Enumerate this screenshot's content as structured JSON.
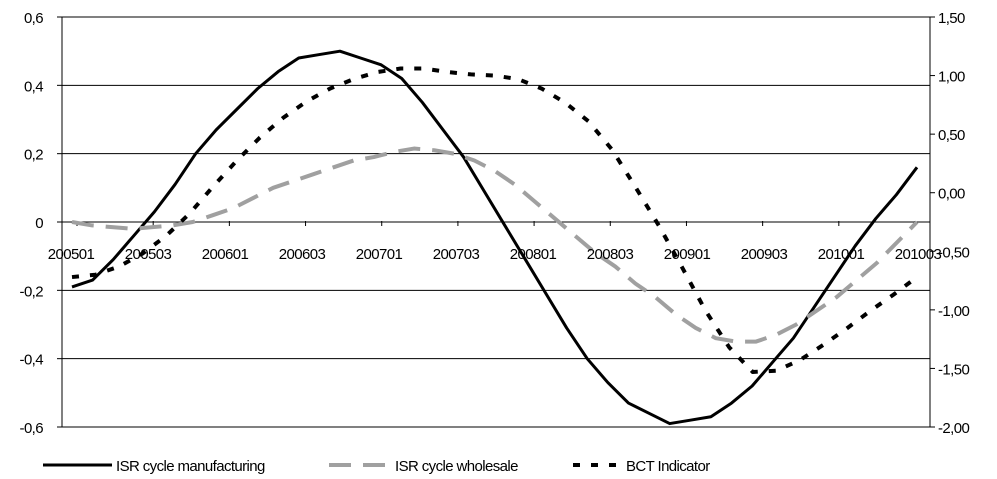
{
  "chart_data": {
    "type": "line",
    "title": "",
    "xlabel": "",
    "ylabel": "",
    "grid": true,
    "legend_position": "bottom",
    "x_tick_labels": [
      "200501",
      "200503",
      "200601",
      "200603",
      "200701",
      "200703",
      "200801",
      "200803",
      "200901",
      "200903",
      "201001",
      "201003"
    ],
    "y_left": {
      "ylim": [
        -0.6,
        0.6
      ],
      "tick_labels": [
        "0,6",
        "0,4",
        "0,2",
        "0",
        "-0,2",
        "-0,4",
        "-0,6"
      ],
      "tick_values": [
        0.6,
        0.4,
        0.2,
        0,
        -0.2,
        -0.4,
        -0.6
      ]
    },
    "y_right": {
      "ylim": [
        -2.0,
        1.5
      ],
      "tick_labels": [
        "1,50",
        "1,00",
        "0,50",
        "0,00",
        "-0,50",
        "-1,00",
        "-1,50",
        "-2,00"
      ],
      "tick_values": [
        1.5,
        1.0,
        0.5,
        0.0,
        -0.5,
        -1.0,
        -1.5,
        -2.0
      ]
    },
    "series": [
      {
        "name": "ISR cycle manufacturing",
        "axis": "left",
        "color": "#000000",
        "dash": "solid",
        "values": [
          -0.19,
          -0.17,
          -0.11,
          -0.04,
          0.03,
          0.11,
          0.2,
          0.27,
          0.33,
          0.39,
          0.44,
          0.48,
          0.49,
          0.5,
          0.48,
          0.46,
          0.42,
          0.35,
          0.27,
          0.19,
          0.09,
          -0.01,
          -0.11,
          -0.21,
          -0.31,
          -0.4,
          -0.47,
          -0.53,
          -0.56,
          -0.59,
          -0.58,
          -0.57,
          -0.53,
          -0.48,
          -0.41,
          -0.34,
          -0.25,
          -0.16,
          -0.07,
          0.01,
          0.08,
          0.16
        ]
      },
      {
        "name": "ISR cycle wholesale",
        "axis": "left",
        "color": "#a0a0a0",
        "dash": "dashed",
        "values": [
          0.0,
          -0.01,
          -0.015,
          -0.02,
          -0.015,
          -0.01,
          0.0,
          0.02,
          0.04,
          0.07,
          0.1,
          0.12,
          0.14,
          0.16,
          0.18,
          0.19,
          0.205,
          0.215,
          0.21,
          0.2,
          0.18,
          0.15,
          0.11,
          0.06,
          0.01,
          -0.04,
          -0.09,
          -0.13,
          -0.18,
          -0.22,
          -0.27,
          -0.31,
          -0.34,
          -0.35,
          -0.35,
          -0.33,
          -0.3,
          -0.26,
          -0.22,
          -0.17,
          -0.12,
          -0.06,
          0.0
        ]
      },
      {
        "name": "BCT Indicator",
        "axis": "right",
        "color": "#000000",
        "dash": "dotted",
        "values": [
          -0.72,
          -0.7,
          -0.63,
          -0.52,
          -0.37,
          -0.18,
          0.05,
          0.27,
          0.47,
          0.64,
          0.78,
          0.89,
          0.97,
          1.03,
          1.06,
          1.06,
          1.03,
          1.01,
          1.0,
          0.97,
          0.89,
          0.77,
          0.61,
          0.37,
          0.05,
          -0.28,
          -0.64,
          -1.01,
          -1.32,
          -1.53,
          -1.52,
          -1.43,
          -1.3,
          -1.16,
          -1.01,
          -0.87,
          -0.72
        ]
      }
    ]
  },
  "legend": {
    "items": [
      {
        "label": "ISR cycle manufacturing"
      },
      {
        "label": "ISR cycle wholesale"
      },
      {
        "label": "BCT Indicator"
      }
    ]
  }
}
